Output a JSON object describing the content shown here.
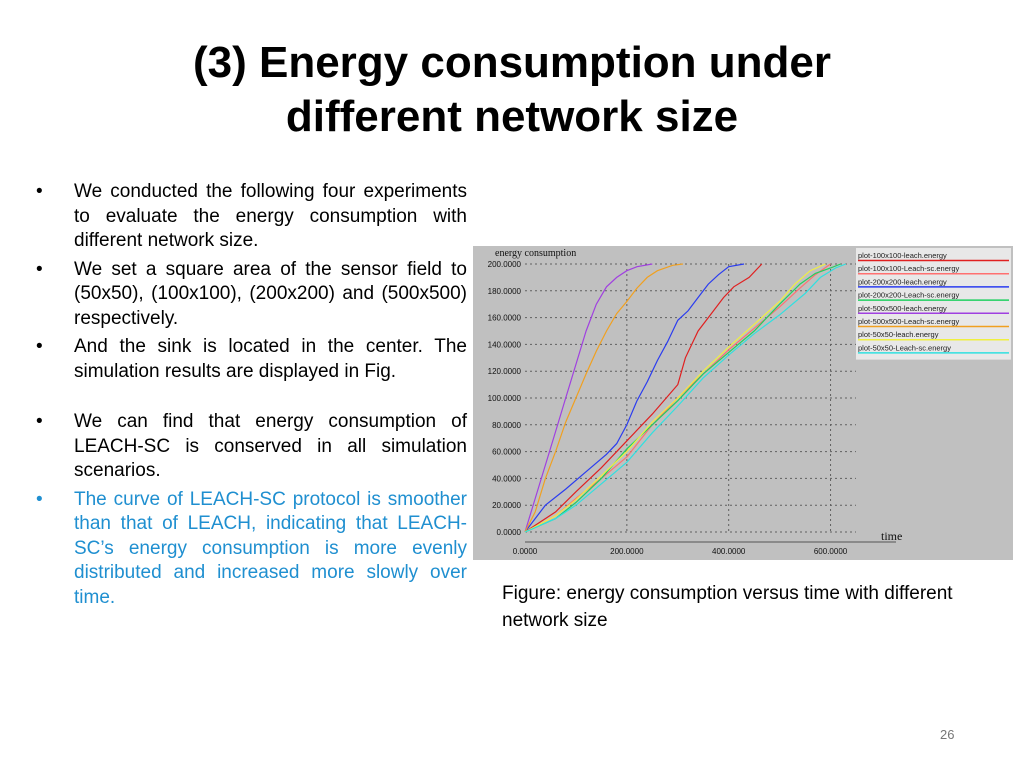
{
  "slide": {
    "title_line1": "(3) Energy consumption under",
    "title_line2": "different network size",
    "bullet_symbol": "•",
    "bullets": [
      "We conducted the following four experiments to evaluate the energy consumption with different network size.",
      "We set a square area of the sensor field to (50x50), (100x100), (200x200) and (500x500) respectively.",
      "And the sink is located in the center. The simulation results are displayed in Fig.",
      "We can find that energy consumption of LEACH-SC is conserved in all simulation scenarios.",
      "The curve of LEACH-SC protocol is smoother than that of LEACH, indicating that LEACH-SC’s energy consumption is more evenly distributed and increased more slowly over time."
    ],
    "caption": "Figure: energy consumption versus time with different network size",
    "page_number": "26"
  },
  "colors": {
    "accent_text": "#1f8fd0",
    "plot_bg": "#c0c0c0",
    "legend_bg": "#e8e8e8"
  },
  "chart_data": {
    "type": "line",
    "title": "",
    "ylabel": "energy consumption",
    "xlabel": "time",
    "xlim": [
      0,
      650
    ],
    "ylim": [
      0,
      200
    ],
    "x_ticks": [
      "0.0000",
      "200.0000",
      "400.0000",
      "600.0000"
    ],
    "y_ticks": [
      "0.0000",
      "20.0000",
      "40.0000",
      "60.0000",
      "80.0000",
      "100.0000",
      "120.0000",
      "140.0000",
      "160.0000",
      "180.0000",
      "200.0000"
    ],
    "grid": true,
    "legend_position": "top-right",
    "series": [
      {
        "name": "plot-100x100-leach.energy",
        "color": "#e02020",
        "points": [
          [
            0,
            0
          ],
          [
            60,
            15
          ],
          [
            100,
            30
          ],
          [
            150,
            48
          ],
          [
            200,
            68
          ],
          [
            250,
            88
          ],
          [
            300,
            110
          ],
          [
            315,
            130
          ],
          [
            340,
            150
          ],
          [
            360,
            160
          ],
          [
            390,
            175
          ],
          [
            410,
            183
          ],
          [
            440,
            190
          ],
          [
            465,
            200
          ]
        ]
      },
      {
        "name": "plot-100x100-Leach-sc.energy",
        "color": "#ff7070",
        "points": [
          [
            0,
            0
          ],
          [
            60,
            12
          ],
          [
            100,
            25
          ],
          [
            150,
            40
          ],
          [
            200,
            56
          ],
          [
            250,
            80
          ],
          [
            300,
            100
          ],
          [
            350,
            118
          ],
          [
            400,
            136
          ],
          [
            450,
            152
          ],
          [
            500,
            168
          ],
          [
            540,
            182
          ],
          [
            570,
            192
          ],
          [
            600,
            200
          ]
        ]
      },
      {
        "name": "plot-200x200-leach.energy",
        "color": "#2a3cf0",
        "points": [
          [
            0,
            0
          ],
          [
            40,
            20
          ],
          [
            80,
            32
          ],
          [
            120,
            45
          ],
          [
            160,
            58
          ],
          [
            180,
            66
          ],
          [
            200,
            80
          ],
          [
            220,
            98
          ],
          [
            240,
            112
          ],
          [
            260,
            128
          ],
          [
            280,
            142
          ],
          [
            300,
            158
          ],
          [
            320,
            165
          ],
          [
            340,
            175
          ],
          [
            360,
            185
          ],
          [
            380,
            192
          ],
          [
            400,
            198
          ],
          [
            430,
            200
          ]
        ]
      },
      {
        "name": "plot-200x200-Leach-sc.energy",
        "color": "#20d060",
        "points": [
          [
            0,
            0
          ],
          [
            60,
            10
          ],
          [
            100,
            22
          ],
          [
            150,
            40
          ],
          [
            200,
            62
          ],
          [
            250,
            80
          ],
          [
            300,
            98
          ],
          [
            350,
            118
          ],
          [
            400,
            134
          ],
          [
            450,
            150
          ],
          [
            500,
            170
          ],
          [
            540,
            185
          ],
          [
            570,
            193
          ],
          [
            600,
            197
          ],
          [
            620,
            200
          ]
        ]
      },
      {
        "name": "plot-500x500-leach.energy",
        "color": "#a040e0",
        "points": [
          [
            0,
            0
          ],
          [
            20,
            25
          ],
          [
            40,
            50
          ],
          [
            60,
            75
          ],
          [
            80,
            100
          ],
          [
            100,
            125
          ],
          [
            120,
            150
          ],
          [
            140,
            170
          ],
          [
            160,
            183
          ],
          [
            180,
            190
          ],
          [
            200,
            195
          ],
          [
            220,
            198
          ],
          [
            250,
            200
          ]
        ]
      },
      {
        "name": "plot-500x500-Leach-sc.energy",
        "color": "#f0a020",
        "points": [
          [
            0,
            0
          ],
          [
            20,
            15
          ],
          [
            40,
            40
          ],
          [
            60,
            60
          ],
          [
            80,
            82
          ],
          [
            100,
            100
          ],
          [
            120,
            118
          ],
          [
            140,
            135
          ],
          [
            160,
            150
          ],
          [
            180,
            163
          ],
          [
            200,
            172
          ],
          [
            220,
            182
          ],
          [
            240,
            190
          ],
          [
            260,
            195
          ],
          [
            290,
            199
          ],
          [
            310,
            200
          ]
        ]
      },
      {
        "name": "plot-50x50-leach.energy",
        "color": "#f0f040",
        "points": [
          [
            0,
            0
          ],
          [
            60,
            12
          ],
          [
            100,
            24
          ],
          [
            150,
            42
          ],
          [
            200,
            60
          ],
          [
            250,
            82
          ],
          [
            300,
            100
          ],
          [
            350,
            120
          ],
          [
            400,
            138
          ],
          [
            450,
            155
          ],
          [
            500,
            172
          ],
          [
            530,
            185
          ],
          [
            560,
            195
          ],
          [
            590,
            200
          ]
        ]
      },
      {
        "name": "plot-50x50-Leach-sc.energy",
        "color": "#30e0e0",
        "points": [
          [
            0,
            0
          ],
          [
            60,
            10
          ],
          [
            100,
            20
          ],
          [
            150,
            36
          ],
          [
            200,
            52
          ],
          [
            250,
            74
          ],
          [
            300,
            94
          ],
          [
            350,
            115
          ],
          [
            400,
            132
          ],
          [
            450,
            148
          ],
          [
            500,
            162
          ],
          [
            550,
            178
          ],
          [
            580,
            190
          ],
          [
            610,
            197
          ],
          [
            630,
            200
          ]
        ]
      }
    ]
  }
}
